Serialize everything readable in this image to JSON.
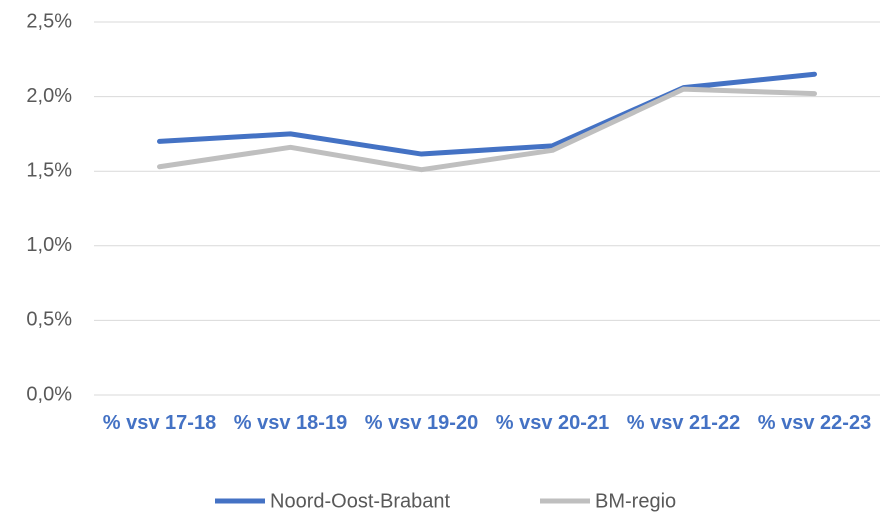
{
  "chart_data": {
    "type": "line",
    "categories": [
      "% vsv 17-18",
      "% vsv 18-19",
      "% vsv 19-20",
      "% vsv 20-21",
      "% vsv 21-22",
      "% vsv 22-23"
    ],
    "series": [
      {
        "name": "Noord-Oost-Brabant",
        "color": "#4472c4",
        "values": [
          1.7,
          1.75,
          1.615,
          1.67,
          2.06,
          2.15
        ]
      },
      {
        "name": "BM-regio",
        "color": "#bfbfbf",
        "values": [
          1.53,
          1.66,
          1.51,
          1.64,
          2.05,
          2.02
        ]
      }
    ],
    "ylim": [
      0,
      2.5
    ],
    "yticks": [
      {
        "value": 0,
        "label": "0,0%"
      },
      {
        "value": 0.5,
        "label": "0,5%"
      },
      {
        "value": 1.0,
        "label": "1,0%"
      },
      {
        "value": 1.5,
        "label": "1,5%"
      },
      {
        "value": 2.0,
        "label": "2,0%"
      },
      {
        "value": 2.5,
        "label": "2,5%"
      }
    ],
    "grid": true,
    "legend": "bottom"
  }
}
